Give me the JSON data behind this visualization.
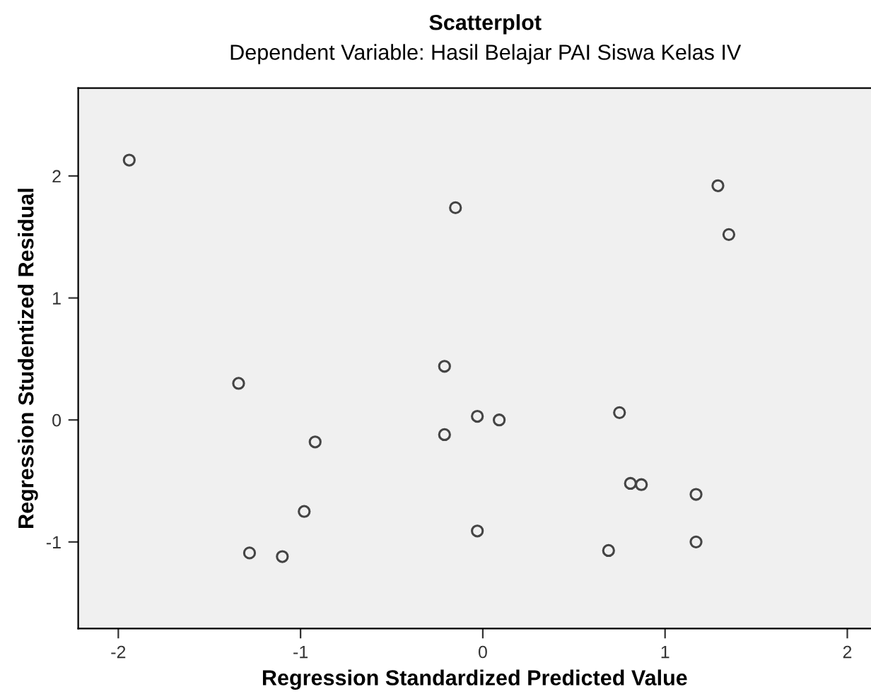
{
  "chart_data": {
    "type": "scatter",
    "title": "Scatterplot",
    "subtitle": "Dependent Variable: Hasil Belajar PAI Siswa Kelas IV",
    "xlabel": "Regression Standardized Predicted Value",
    "ylabel": "Regression Studentized Residual",
    "x": [
      -1.94,
      -0.15,
      1.29,
      1.35,
      -1.34,
      -0.21,
      -0.03,
      0.09,
      0.75,
      -0.21,
      -0.92,
      0.81,
      0.87,
      1.17,
      -0.98,
      -0.03,
      0.69,
      1.17,
      -1.28,
      -1.1
    ],
    "values": [
      2.13,
      1.74,
      1.92,
      1.52,
      0.3,
      0.44,
      0.03,
      0.0,
      0.06,
      -0.12,
      -0.18,
      -0.52,
      -0.53,
      -0.61,
      -0.75,
      -0.91,
      -1.07,
      -1.0,
      -1.09,
      -1.12
    ],
    "color": "#444444",
    "marker": "circle",
    "xlim": [
      -2.22,
      2.13
    ],
    "ylim": [
      -1.71,
      2.72
    ],
    "xticks": [
      -2,
      -1,
      0,
      1,
      2
    ],
    "yticks": [
      -1,
      0,
      1,
      2
    ],
    "grid": false,
    "legend": false
  }
}
